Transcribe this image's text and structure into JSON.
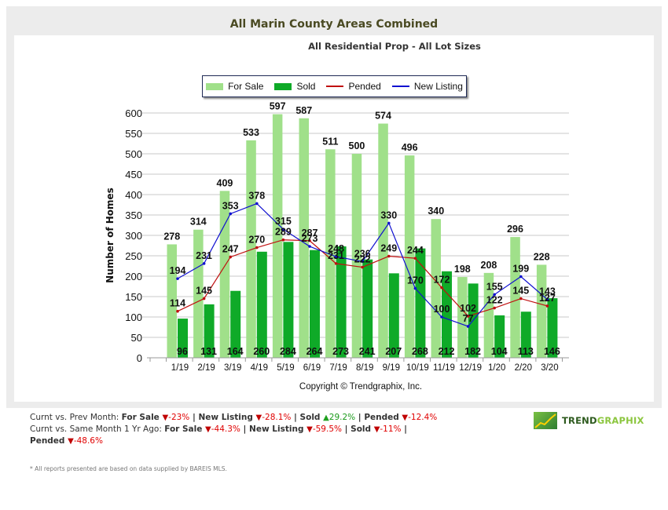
{
  "header": {
    "title": "All Marin County Areas Combined",
    "subtitle": "All Residential Prop - All Lot Sizes"
  },
  "legend": [
    {
      "label": "For Sale",
      "kind": "box",
      "color": "#a0e08a"
    },
    {
      "label": "Sold",
      "kind": "box",
      "color": "#0faa28"
    },
    {
      "label": "Pended",
      "kind": "line",
      "color": "#c01010"
    },
    {
      "label": "New Listing",
      "kind": "line",
      "color": "#1010d0"
    }
  ],
  "chart_data": {
    "type": "bar",
    "title": "All Marin County Areas Combined",
    "subtitle": "All Residential Prop - All Lot Sizes",
    "xlabel": "",
    "ylabel": "Number of Homes",
    "ylim": [
      0,
      600
    ],
    "yticks": [
      0,
      50,
      100,
      150,
      200,
      250,
      300,
      350,
      400,
      450,
      500,
      550,
      600
    ],
    "grid": true,
    "legend_position": "top-center",
    "categories": [
      "1/19",
      "2/19",
      "3/19",
      "4/19",
      "5/19",
      "6/19",
      "7/19",
      "8/19",
      "9/19",
      "10/19",
      "11/19",
      "12/19",
      "1/20",
      "2/20",
      "3/20"
    ],
    "series": [
      {
        "name": "For Sale",
        "type": "bar",
        "color": "#a0e08a",
        "values": [
          278,
          314,
          409,
          533,
          597,
          587,
          511,
          500,
          574,
          496,
          340,
          198,
          208,
          296,
          228
        ]
      },
      {
        "name": "Sold",
        "type": "bar",
        "color": "#0faa28",
        "values": [
          96,
          131,
          164,
          260,
          284,
          264,
          273,
          241,
          207,
          268,
          212,
          182,
          104,
          113,
          146
        ]
      },
      {
        "name": "Pended",
        "type": "line",
        "color": "#c01010",
        "values": [
          114,
          145,
          247,
          270,
          289,
          287,
          231,
          222,
          249,
          244,
          172,
          102,
          122,
          145,
          127
        ]
      },
      {
        "name": "New Listing",
        "type": "line",
        "color": "#1010d0",
        "values": [
          194,
          231,
          353,
          378,
          315,
          273,
          248,
          236,
          330,
          170,
          100,
          77,
          155,
          199,
          143
        ]
      }
    ],
    "annotation": "Copyright © Trendgraphix, Inc."
  },
  "stats": {
    "prev_month": {
      "label": "Curnt vs. Prev Month:",
      "items": [
        {
          "name": "For Sale",
          "dir": "down",
          "value": "-23%"
        },
        {
          "name": "New Listing",
          "dir": "down",
          "value": "-28.1%"
        },
        {
          "name": "Sold",
          "dir": "up",
          "value": "29.2%"
        },
        {
          "name": "Pended",
          "dir": "down",
          "value": "-12.4%"
        }
      ]
    },
    "year_ago": {
      "label": "Curnt vs. Same Month 1 Yr Ago:",
      "items": [
        {
          "name": "For Sale",
          "dir": "down",
          "value": "-44.3%"
        },
        {
          "name": "New Listing",
          "dir": "down",
          "value": "-59.5%"
        },
        {
          "name": "Sold",
          "dir": "down",
          "value": "-11%"
        },
        {
          "name": "Pended",
          "dir": "down",
          "value": "-48.6%"
        }
      ]
    }
  },
  "footnote": "* All reports presented are based on data supplied by BAREIS MLS.",
  "logo": {
    "part1": "TREND",
    "part2": "GRAPHIX"
  }
}
